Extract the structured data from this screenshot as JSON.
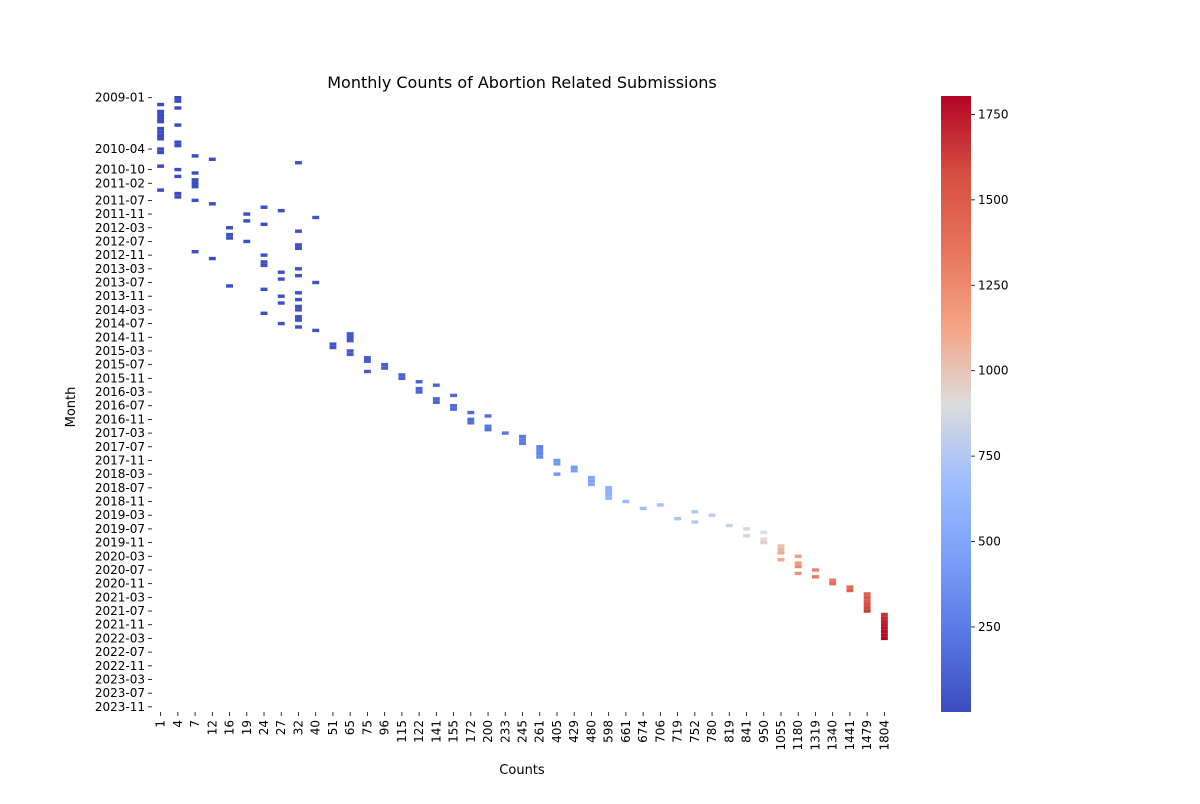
{
  "chart_data": {
    "type": "heatmap",
    "title": "Monthly Counts of Abortion Related Submissions",
    "xlabel": "Counts",
    "ylabel": "Month",
    "grid": false,
    "colormap": "coolwarm",
    "y_tick_labels": [
      "2009-01",
      "2010-04",
      "2010-10",
      "2011-02",
      "2011-07",
      "2011-11",
      "2012-03",
      "2012-07",
      "2012-11",
      "2013-03",
      "2013-07",
      "2013-11",
      "2014-03",
      "2014-07",
      "2014-11",
      "2015-03",
      "2015-07",
      "2015-11",
      "2016-03",
      "2016-07",
      "2016-11",
      "2017-03",
      "2017-07",
      "2017-11",
      "2018-03",
      "2018-07",
      "2018-11",
      "2019-03",
      "2019-07",
      "2019-11",
      "2020-03",
      "2020-07",
      "2020-11",
      "2021-03",
      "2021-07",
      "2021-11",
      "2022-03",
      "2022-07",
      "2022-11",
      "2023-03",
      "2023-07",
      "2023-11"
    ],
    "x_tick_labels": [
      "1",
      "4",
      "7",
      "12",
      "16",
      "19",
      "24",
      "27",
      "32",
      "40",
      "51",
      "65",
      "75",
      "96",
      "115",
      "122",
      "141",
      "155",
      "172",
      "200",
      "233",
      "245",
      "261",
      "405",
      "429",
      "480",
      "598",
      "661",
      "674",
      "706",
      "719",
      "752",
      "780",
      "819",
      "841",
      "950",
      "1055",
      "1180",
      "1319",
      "1340",
      "1441",
      "1479",
      "1804"
    ],
    "colorbar": {
      "ticks": [
        250,
        500,
        750,
        1000,
        1250,
        1500,
        1750
      ],
      "range": [
        1,
        1804
      ],
      "orientation": "vertical",
      "position": "right"
    },
    "points": [
      [
        "2009-01",
        3
      ],
      [
        "2009-02",
        3
      ],
      [
        "2009-03",
        1
      ],
      [
        "2009-04",
        3
      ],
      [
        "2009-05",
        1
      ],
      [
        "2009-06",
        1
      ],
      [
        "2009-07",
        1
      ],
      [
        "2009-08",
        1
      ],
      [
        "2009-09",
        3
      ],
      [
        "2009-10",
        1
      ],
      [
        "2009-11",
        1
      ],
      [
        "2009-12",
        1
      ],
      [
        "2010-01",
        1
      ],
      [
        "2010-02",
        3
      ],
      [
        "2010-03",
        5
      ],
      [
        "2010-04",
        2
      ],
      [
        "2010-05",
        1
      ],
      [
        "2010-06",
        6
      ],
      [
        "2010-07",
        11
      ],
      [
        "2010-08",
        34
      ],
      [
        "2010-09",
        1
      ],
      [
        "2010-10",
        5
      ],
      [
        "2010-11",
        8
      ],
      [
        "2010-12",
        4
      ],
      [
        "2011-01",
        7
      ],
      [
        "2011-02",
        7
      ],
      [
        "2011-03",
        6
      ],
      [
        "2011-04",
        2
      ],
      [
        "2011-05",
        3
      ],
      [
        "2011-06",
        5
      ],
      [
        "2011-07",
        9
      ],
      [
        "2011-08",
        12
      ],
      [
        "2011-09",
        22
      ],
      [
        "2011-10",
        26
      ],
      [
        "2011-11",
        21
      ],
      [
        "2011-12",
        37
      ],
      [
        "2012-01",
        18
      ],
      [
        "2012-02",
        23
      ],
      [
        "2012-03",
        15
      ],
      [
        "2012-04",
        30
      ],
      [
        "2012-05",
        16
      ],
      [
        "2012-06",
        17
      ],
      [
        "2012-07",
        20
      ],
      [
        "2012-08",
        33
      ],
      [
        "2012-09",
        34
      ],
      [
        "2012-10",
        9
      ],
      [
        "2012-11",
        24
      ],
      [
        "2012-12",
        14
      ],
      [
        "2013-01",
        25
      ],
      [
        "2013-02",
        22
      ],
      [
        "2013-03",
        34
      ],
      [
        "2013-04",
        28
      ],
      [
        "2013-05",
        32
      ],
      [
        "2013-06",
        29
      ],
      [
        "2013-07",
        39
      ],
      [
        "2013-08",
        15
      ],
      [
        "2013-09",
        24
      ],
      [
        "2013-10",
        30
      ],
      [
        "2013-11",
        27
      ],
      [
        "2013-12",
        31
      ],
      [
        "2014-01",
        26
      ],
      [
        "2014-02",
        31
      ],
      [
        "2014-03",
        36
      ],
      [
        "2014-04",
        24
      ],
      [
        "2014-05",
        33
      ],
      [
        "2014-06",
        35
      ],
      [
        "2014-07",
        28
      ],
      [
        "2014-08",
        32
      ],
      [
        "2014-09",
        44
      ],
      [
        "2014-10",
        62
      ],
      [
        "2014-11",
        65
      ],
      [
        "2014-12",
        64
      ],
      [
        "2015-01",
        50
      ],
      [
        "2015-02",
        51
      ],
      [
        "2015-03",
        66
      ],
      [
        "2015-04",
        68
      ],
      [
        "2015-05",
        76
      ],
      [
        "2015-06",
        85
      ],
      [
        "2015-07",
        100
      ],
      [
        "2015-08",
        96
      ],
      [
        "2015-09",
        76
      ],
      [
        "2015-10",
        115
      ],
      [
        "2015-11",
        116
      ],
      [
        "2015-12",
        125
      ],
      [
        "2016-01",
        132
      ],
      [
        "2016-02",
        120
      ],
      [
        "2016-03",
        123
      ],
      [
        "2016-04",
        150
      ],
      [
        "2016-05",
        145
      ],
      [
        "2016-06",
        141
      ],
      [
        "2016-07",
        156
      ],
      [
        "2016-08",
        163
      ],
      [
        "2016-09",
        170
      ],
      [
        "2016-10",
        190
      ],
      [
        "2016-11",
        172
      ],
      [
        "2016-12",
        174
      ],
      [
        "2017-01",
        210
      ],
      [
        "2017-02",
        203
      ],
      [
        "2017-03",
        230
      ],
      [
        "2017-04",
        240
      ],
      [
        "2017-05",
        245
      ],
      [
        "2017-06",
        251
      ],
      [
        "2017-07",
        270
      ],
      [
        "2017-08",
        300
      ],
      [
        "2017-09",
        290
      ],
      [
        "2017-10",
        320
      ],
      [
        "2017-11",
        400
      ],
      [
        "2017-12",
        405
      ],
      [
        "2018-01",
        420
      ],
      [
        "2018-02",
        450
      ],
      [
        "2018-03",
        405
      ],
      [
        "2018-04",
        500
      ],
      [
        "2018-05",
        470
      ],
      [
        "2018-06",
        520
      ],
      [
        "2018-07",
        560
      ],
      [
        "2018-08",
        575
      ],
      [
        "2018-09",
        590
      ],
      [
        "2018-10",
        620
      ],
      [
        "2018-11",
        640
      ],
      [
        "2018-12",
        700
      ],
      [
        "2019-01",
        680
      ],
      [
        "2019-02",
        740
      ],
      [
        "2019-03",
        780
      ],
      [
        "2019-04",
        720
      ],
      [
        "2019-05",
        760
      ],
      [
        "2019-06",
        820
      ],
      [
        "2019-07",
        880
      ],
      [
        "2019-08",
        900
      ],
      [
        "2019-09",
        860
      ],
      [
        "2019-10",
        905
      ],
      [
        "2019-11",
        960
      ],
      [
        "2019-12",
        1020
      ],
      [
        "2020-01",
        1060
      ],
      [
        "2020-02",
        1100
      ],
      [
        "2020-03",
        1150
      ],
      [
        "2020-04",
        1110
      ],
      [
        "2020-05",
        1190
      ],
      [
        "2020-06",
        1230
      ],
      [
        "2020-07",
        1280
      ],
      [
        "2020-08",
        1210
      ],
      [
        "2020-09",
        1320
      ],
      [
        "2020-10",
        1340
      ],
      [
        "2020-11",
        1380
      ],
      [
        "2020-12",
        1420
      ],
      [
        "2021-01",
        1460
      ],
      [
        "2021-02",
        1480
      ],
      [
        "2021-03",
        1520
      ],
      [
        "2021-04",
        1500
      ],
      [
        "2021-05",
        1560
      ],
      [
        "2021-06",
        1600
      ],
      [
        "2021-07",
        1640
      ],
      [
        "2021-08",
        1660
      ],
      [
        "2021-09",
        1700
      ],
      [
        "2021-10",
        1720
      ],
      [
        "2021-11",
        1740
      ],
      [
        "2021-12",
        1760
      ],
      [
        "2022-01",
        1780
      ],
      [
        "2022-02",
        1790
      ],
      [
        "2022-03",
        1804
      ]
    ]
  }
}
